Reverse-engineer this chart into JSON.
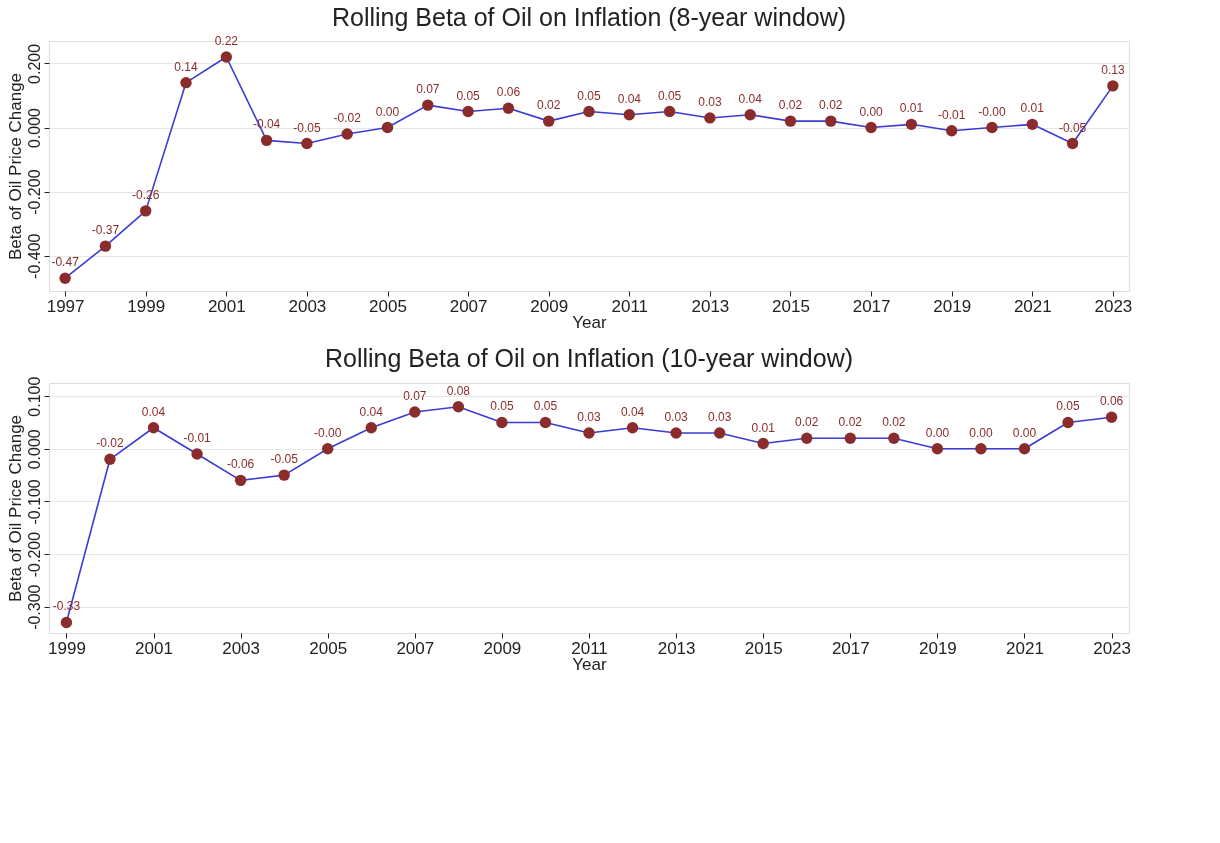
{
  "chart_data": [
    {
      "type": "line",
      "title": "Rolling Beta of Oil on Inflation (8-year window)",
      "xlabel": "Year",
      "ylabel": "Beta of Oil Price Change",
      "x": [
        1997,
        1998,
        1999,
        2000,
        2001,
        2002,
        2003,
        2004,
        2005,
        2006,
        2007,
        2008,
        2009,
        2010,
        2011,
        2012,
        2013,
        2014,
        2015,
        2016,
        2017,
        2018,
        2019,
        2020,
        2021,
        2022,
        2023
      ],
      "series": [
        {
          "type": "line",
          "color": "#3b3bd6",
          "marker": "none",
          "values": [
            -0.47,
            -0.37,
            -0.26,
            0.14,
            0.22,
            -0.04,
            -0.05,
            -0.02,
            0.0,
            0.07,
            0.05,
            0.06,
            0.02,
            0.05,
            0.04,
            0.05,
            0.03,
            0.04,
            0.02,
            0.02,
            0.0,
            0.01,
            -0.01,
            0.0,
            0.01,
            -0.05,
            0.13
          ]
        },
        {
          "type": "scatter",
          "color": "#8b2c2c",
          "marker": "circle",
          "values": [
            -0.47,
            -0.37,
            -0.26,
            0.14,
            0.22,
            -0.04,
            -0.05,
            -0.02,
            0.0,
            0.07,
            0.05,
            0.06,
            0.02,
            0.05,
            0.04,
            0.05,
            0.03,
            0.04,
            0.02,
            0.02,
            0.0,
            0.01,
            -0.01,
            0.0,
            0.01,
            -0.05,
            0.13
          ],
          "value_labels": [
            "-0.47",
            "-0.37",
            "-0.26",
            "0.14",
            "0.22",
            "-0.04",
            "-0.05",
            "-0.02",
            "0.00",
            "0.07",
            "0.05",
            "0.06",
            "0.02",
            "0.05",
            "0.04",
            "0.05",
            "0.03",
            "0.04",
            "0.02",
            "0.02",
            "0.00",
            "0.01",
            "-0.01",
            "-0.00",
            "0.01",
            "-0.05",
            "0.13"
          ]
        }
      ],
      "xlim": [
        1996.6,
        2023.4
      ],
      "xticks": [
        1997,
        1999,
        2001,
        2003,
        2005,
        2007,
        2009,
        2011,
        2013,
        2015,
        2017,
        2019,
        2021,
        2023
      ],
      "ylim": [
        -0.51,
        0.27
      ],
      "yticks": [
        {
          "value": -0.4,
          "label": "-0.400"
        },
        {
          "value": -0.2,
          "label": "-0.200"
        },
        {
          "value": 0,
          "label": "0.000"
        },
        {
          "value": 0.2,
          "label": "0.200"
        }
      ],
      "grid": "y",
      "line_style": "solid"
    },
    {
      "type": "line",
      "title": "Rolling Beta of Oil on Inflation (10-year window)",
      "xlabel": "Year",
      "ylabel": "Beta of Oil Price Change",
      "x": [
        1999,
        2000,
        2001,
        2002,
        2003,
        2004,
        2005,
        2006,
        2007,
        2008,
        2009,
        2010,
        2011,
        2012,
        2013,
        2014,
        2015,
        2016,
        2017,
        2018,
        2019,
        2020,
        2021,
        2022,
        2023
      ],
      "series": [
        {
          "type": "line",
          "color": "#3b3bd6",
          "marker": "none",
          "values": [
            -0.33,
            -0.02,
            0.04,
            -0.01,
            -0.06,
            -0.05,
            0.0,
            0.04,
            0.07,
            0.08,
            0.05,
            0.05,
            0.03,
            0.04,
            0.03,
            0.03,
            0.01,
            0.02,
            0.02,
            0.02,
            0.0,
            0.0,
            0.0,
            0.05,
            0.06
          ]
        },
        {
          "type": "scatter",
          "color": "#8b2c2c",
          "marker": "circle",
          "values": [
            -0.33,
            -0.02,
            0.04,
            -0.01,
            -0.06,
            -0.05,
            0.0,
            0.04,
            0.07,
            0.08,
            0.05,
            0.05,
            0.03,
            0.04,
            0.03,
            0.03,
            0.01,
            0.02,
            0.02,
            0.02,
            0.0,
            0.0,
            0.0,
            0.05,
            0.06
          ],
          "value_labels": [
            "-0.33",
            "-0.02",
            "0.04",
            "-0.01",
            "-0.06",
            "-0.05",
            "-0.00",
            "0.04",
            "0.07",
            "0.08",
            "0.05",
            "0.05",
            "0.03",
            "0.04",
            "0.03",
            "0.03",
            "0.01",
            "0.02",
            "0.02",
            "0.02",
            "0.00",
            "0.00",
            "0.00",
            "0.05",
            "0.06"
          ]
        }
      ],
      "xlim": [
        1998.6,
        2023.4
      ],
      "xticks": [
        1999,
        2001,
        2003,
        2005,
        2007,
        2009,
        2011,
        2013,
        2015,
        2017,
        2019,
        2021,
        2023
      ],
      "ylim": [
        -0.35,
        0.125
      ],
      "yticks": [
        {
          "value": -0.3,
          "label": "-0.300"
        },
        {
          "value": -0.2,
          "label": "-0.200"
        },
        {
          "value": -0.1,
          "label": "-0.100"
        },
        {
          "value": 0,
          "label": "0.000"
        },
        {
          "value": 0.1,
          "label": "0.100"
        }
      ],
      "grid": "y",
      "line_style": "solid"
    }
  ]
}
